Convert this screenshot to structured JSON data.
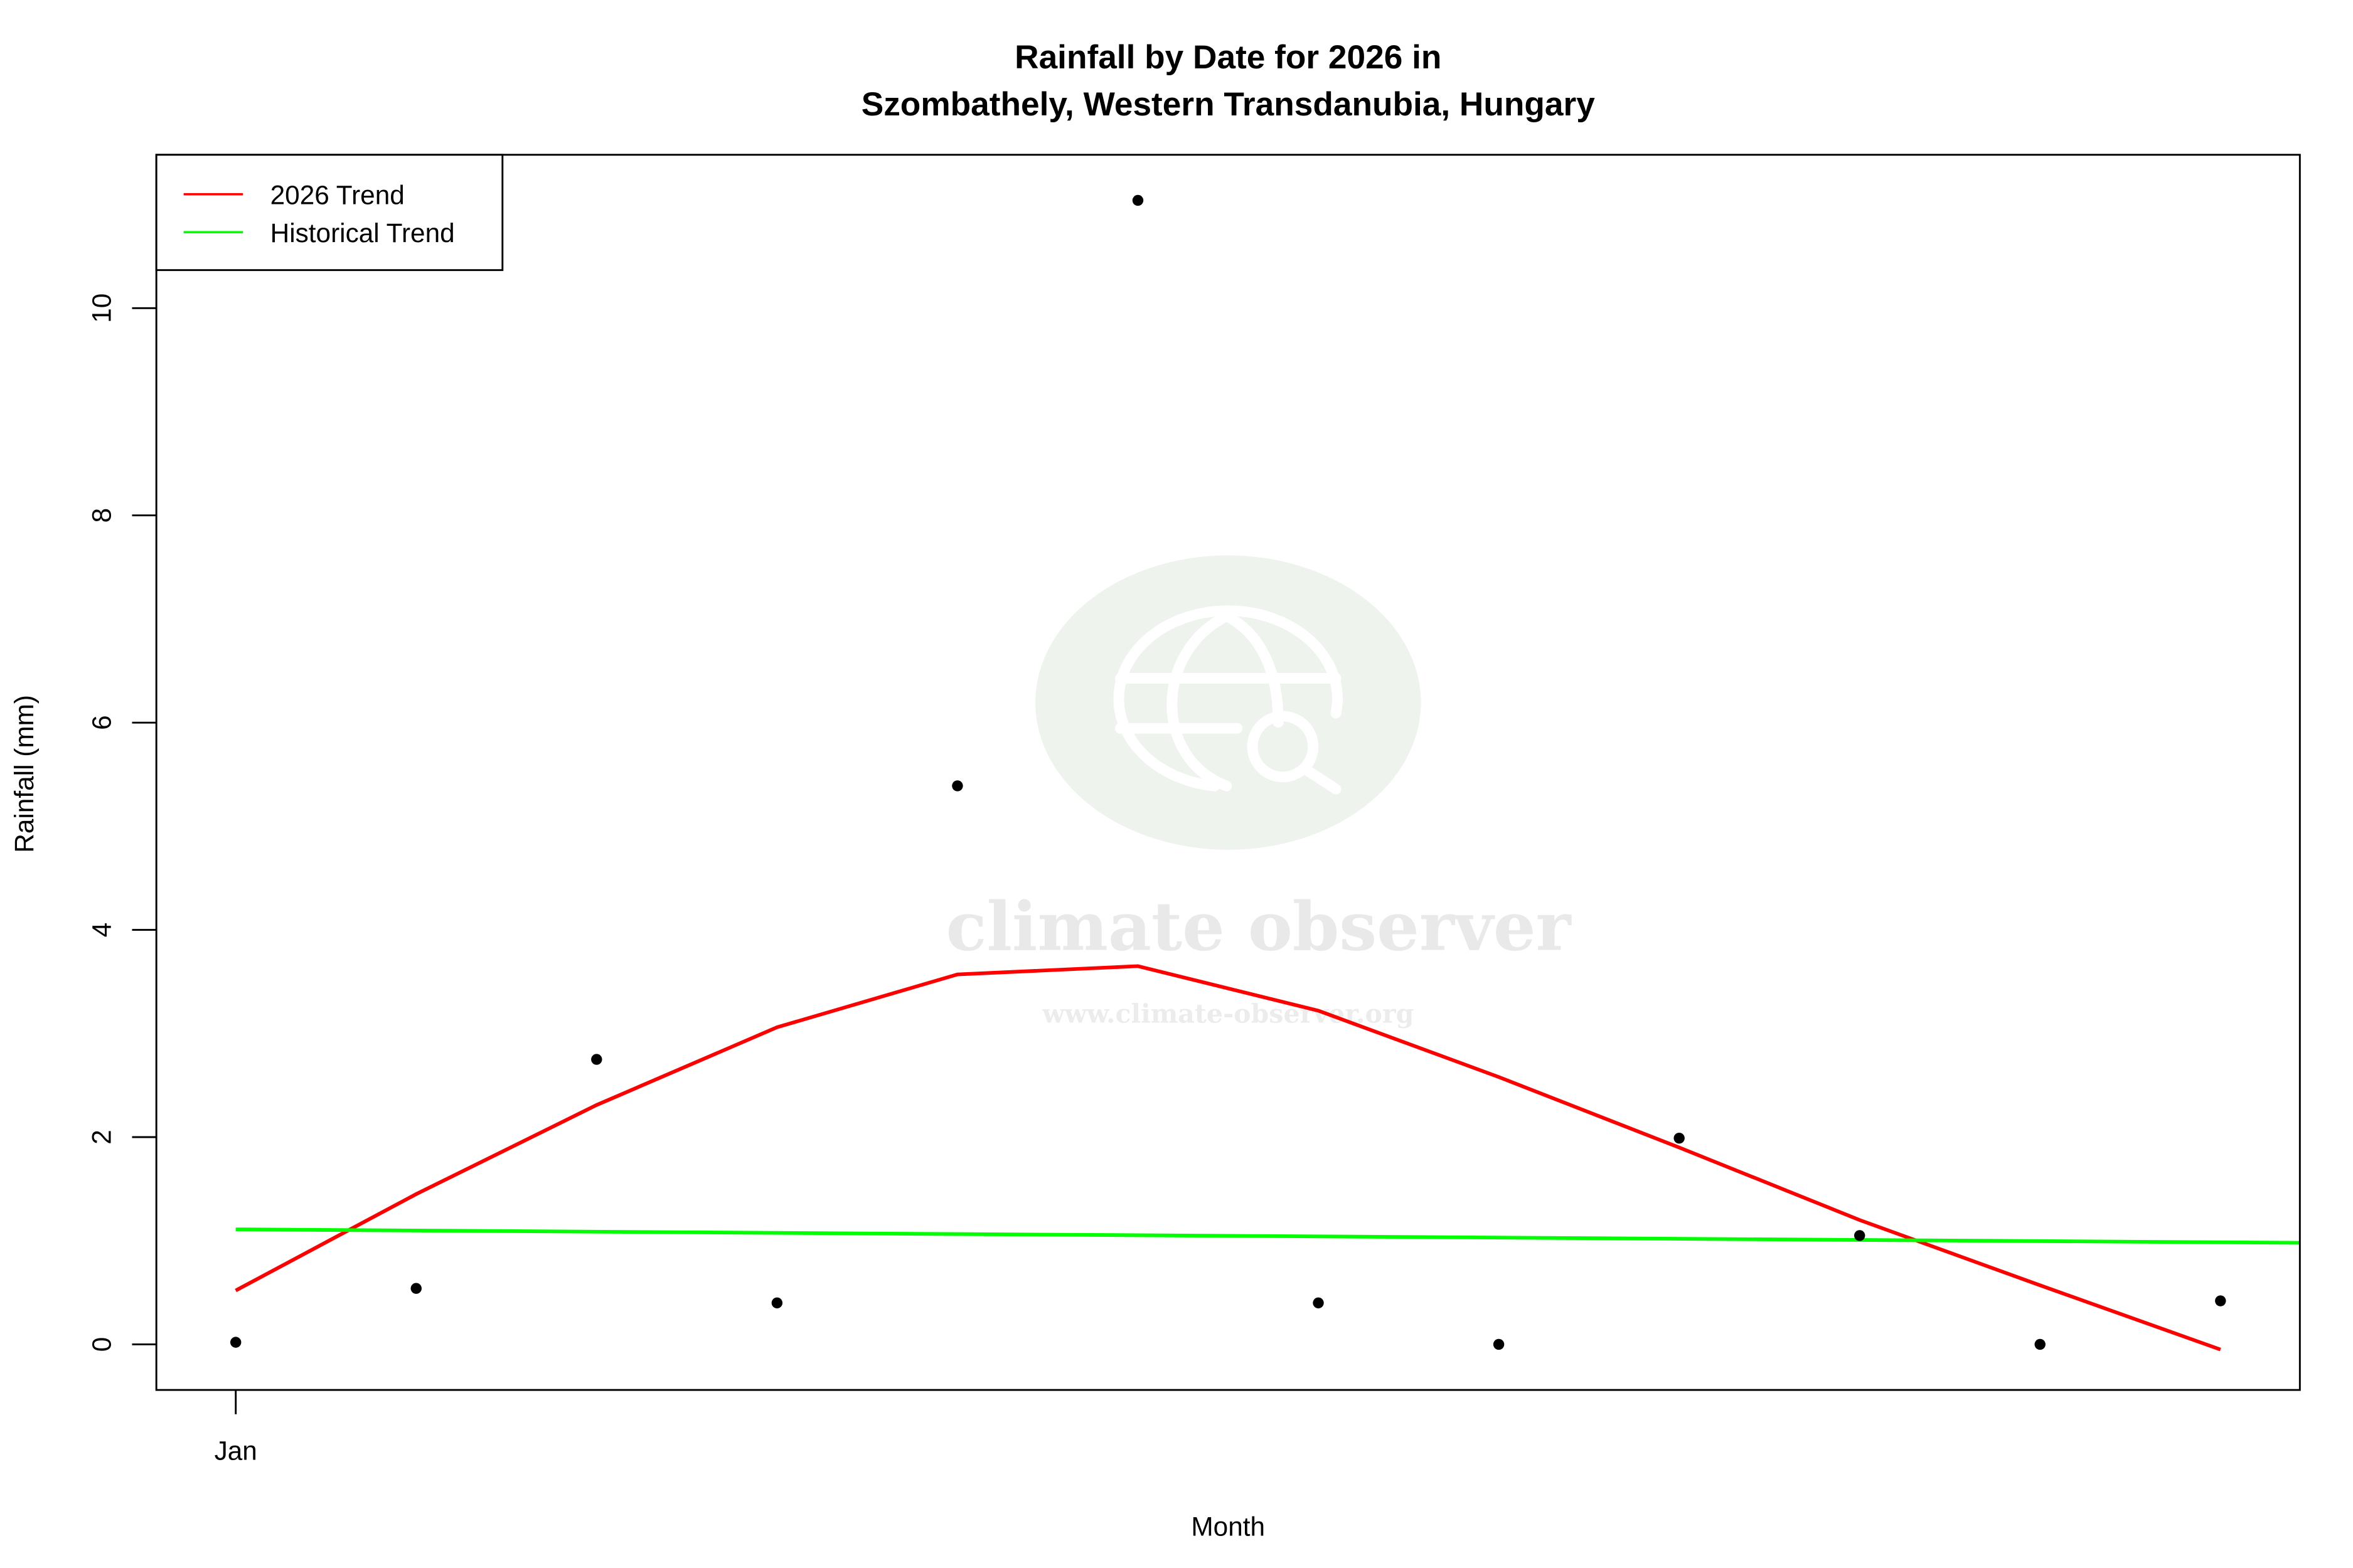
{
  "chart_data": {
    "type": "scatter",
    "title": [
      "Rainfall by Date for 2026 in",
      "Szombathely, Western Transdanubia, Hungary"
    ],
    "xlabel": "Month",
    "ylabel": "Rainfall (mm)",
    "x_tick_labels": [
      {
        "x": 1,
        "label": "Jan"
      }
    ],
    "y_ticks": [
      0,
      2,
      4,
      6,
      8,
      10
    ],
    "xlim": [
      0.56,
      12.44
    ],
    "ylim": [
      -0.44,
      11.48
    ],
    "grid": false,
    "legend_placement": "top-left",
    "points": {
      "x": [
        1,
        2,
        3,
        4,
        5,
        6,
        7,
        8,
        9,
        10,
        11,
        12
      ],
      "y": [
        0.02,
        0.54,
        2.75,
        0.4,
        5.39,
        11.04,
        0.4,
        0.0,
        1.99,
        1.05,
        0.0,
        0.42
      ],
      "color": "#000000"
    },
    "series": [
      {
        "name": "2026 Trend",
        "color": "#ff0000",
        "x": [
          1,
          2,
          3,
          4,
          5,
          6,
          7,
          8,
          9,
          10,
          11,
          12
        ],
        "y": [
          0.52,
          1.45,
          2.31,
          3.06,
          3.57,
          3.65,
          3.22,
          2.58,
          1.9,
          1.2,
          0.57,
          -0.05
        ]
      },
      {
        "name": "Historical Trend",
        "color": "#00ff00",
        "x": [
          1,
          12.44
        ],
        "y": [
          1.11,
          0.98
        ]
      }
    ]
  },
  "watermark": {
    "name": "climate observer",
    "url": "www.climate-observer.org",
    "icon": "globe-search-icon",
    "color": "#eef3ee"
  }
}
